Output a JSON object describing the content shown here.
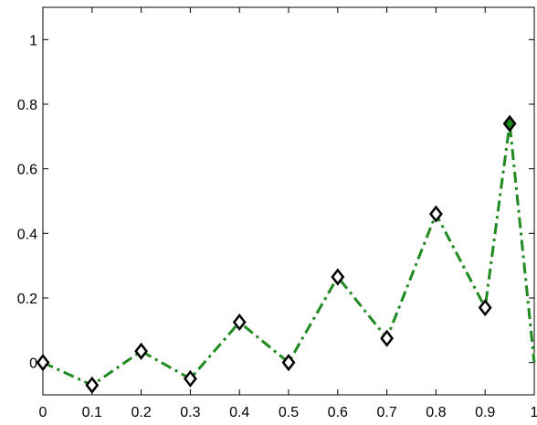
{
  "chart_data": {
    "type": "line",
    "title": "",
    "xlabel": "",
    "ylabel": "",
    "xlim": [
      0,
      1
    ],
    "ylim": [
      -0.1,
      1.1
    ],
    "grid": false,
    "legend": "none",
    "x_ticks": [
      0,
      0.1,
      0.2,
      0.3,
      0.4,
      0.5,
      0.6,
      0.7,
      0.8,
      0.9,
      1
    ],
    "x_tick_labels": [
      "0",
      "0.1",
      "0.2",
      "0.3",
      "0.4",
      "0.5",
      "0.6",
      "0.7",
      "0.8",
      "0.9",
      "1"
    ],
    "y_ticks": [
      0,
      0.2,
      0.4,
      0.6,
      0.8,
      1
    ],
    "y_tick_labels": [
      "0",
      "0.2",
      "0.4",
      "0.6",
      "0.8",
      "1"
    ],
    "line_style": "dash-dot",
    "marker": "diamond",
    "colors": {
      "line": "#1f8a1f",
      "marker_edge": "#000000",
      "marker_face": "#ffffff",
      "highlight_face": "#1f8a1f"
    },
    "series": [
      {
        "x": [
          0,
          0.1,
          0.2,
          0.3,
          0.4,
          0.5,
          0.6,
          0.7,
          0.8,
          0.9,
          0.95,
          1
        ],
        "y": [
          0,
          -0.07,
          0.035,
          -0.05,
          0.125,
          0,
          0.265,
          0.075,
          0.46,
          0.17,
          0.74,
          0
        ],
        "highlighted_point_x": 0.95
      }
    ]
  }
}
